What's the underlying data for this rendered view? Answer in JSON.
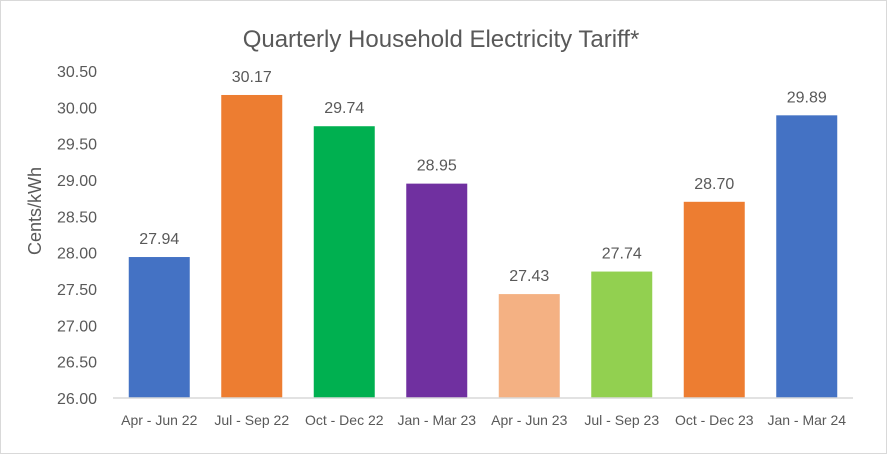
{
  "chart_data": {
    "type": "bar",
    "title": "Quarterly Household Electricity Tariff*",
    "ylabel": "Cents/kWh",
    "xlabel": "",
    "ylim": [
      26.0,
      30.5
    ],
    "yticks": [
      "26.00",
      "26.50",
      "27.00",
      "27.50",
      "28.00",
      "28.50",
      "29.00",
      "29.50",
      "30.00",
      "30.50"
    ],
    "grid": false,
    "categories": [
      "Apr - Jun 22",
      "Jul - Sep 22",
      "Oct - Dec 22",
      "Jan - Mar 23",
      "Apr - Jun 23",
      "Jul - Sep 23",
      "Oct - Dec 23",
      "Jan - Mar 24"
    ],
    "values": [
      27.94,
      30.17,
      29.74,
      28.95,
      27.43,
      27.74,
      28.7,
      29.89
    ],
    "data_labels": [
      "27.94",
      "30.17",
      "29.74",
      "28.95",
      "27.43",
      "27.74",
      "28.70",
      "29.89"
    ],
    "colors": [
      "#4472c4",
      "#ed7d31",
      "#00b050",
      "#7030a0",
      "#f4b183",
      "#92d050",
      "#ed7d31",
      "#4472c4"
    ]
  }
}
